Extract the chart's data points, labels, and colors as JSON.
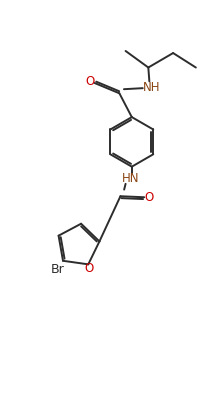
{
  "background": "#ffffff",
  "line_color": "#2d2d2d",
  "o_color": "#cc0000",
  "n_color": "#8B4513",
  "lw": 1.4,
  "fs": 8.5,
  "xlim": [
    0,
    10
  ],
  "ylim": [
    0,
    20
  ]
}
